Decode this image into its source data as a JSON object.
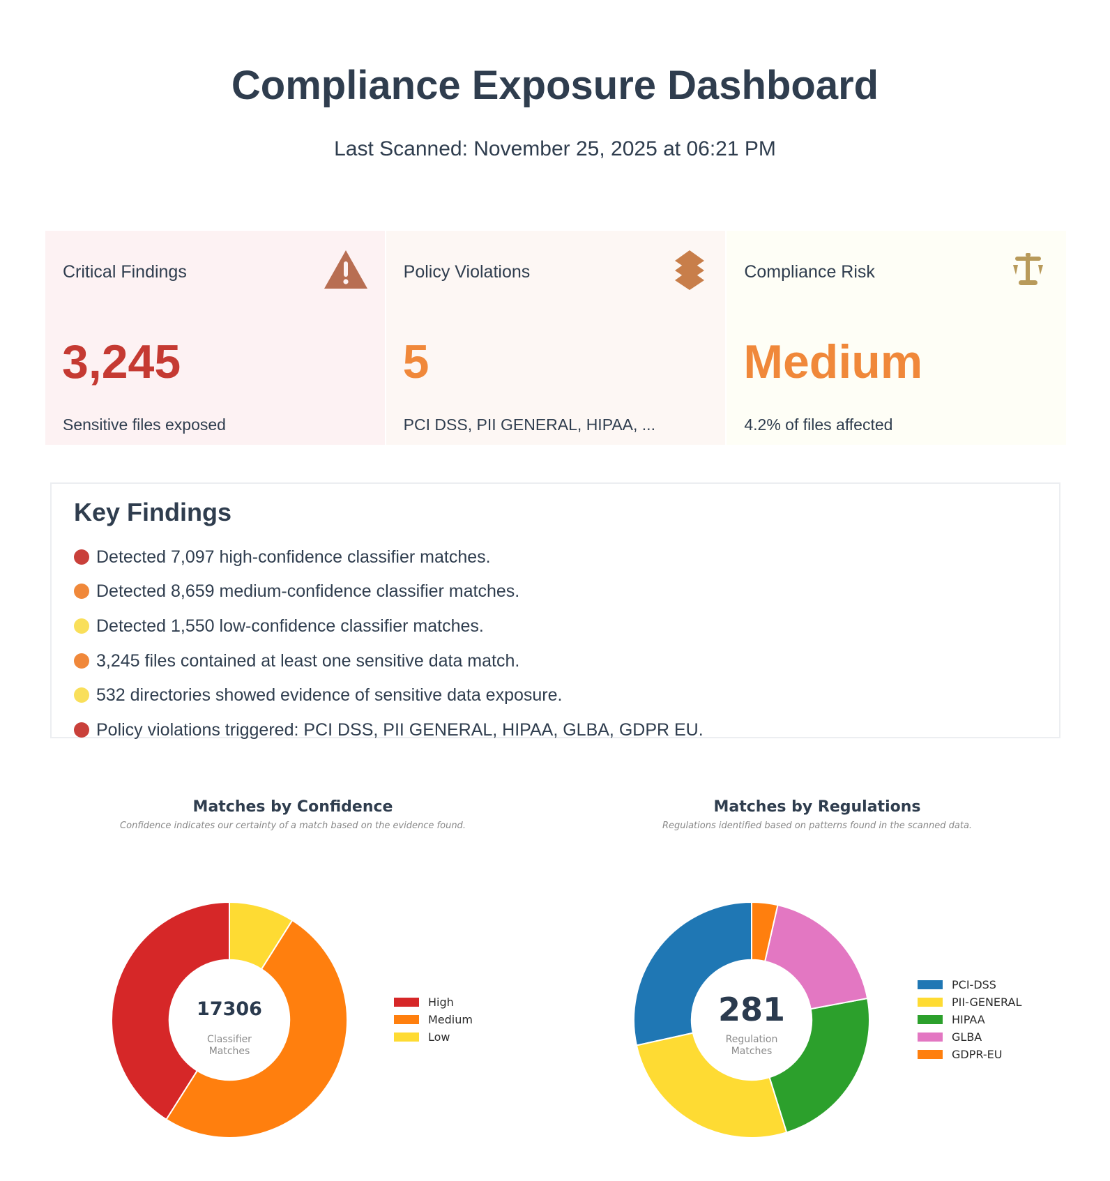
{
  "header": {
    "title": "Compliance Exposure Dashboard",
    "last_scanned": "Last Scanned: November 25, 2025 at 06:21 PM"
  },
  "cards": [
    {
      "title": "Critical Findings",
      "value": "3,245",
      "subtitle": "Sensitive files exposed",
      "icon": "warning-triangle-icon",
      "bg": "#fdf2f3",
      "value_color": "#c53a32",
      "icon_color": "#b86e52"
    },
    {
      "title": "Policy Violations",
      "value": "5",
      "subtitle": "PCI DSS, PII GENERAL, HIPAA, ...",
      "icon": "layers-icon",
      "bg": "#fdf7f4",
      "value_color": "#f0883a",
      "icon_color": "#c87e4a"
    },
    {
      "title": "Compliance Risk",
      "value": "Medium",
      "subtitle": "4.2% of files affected",
      "icon": "scale-icon",
      "bg": "#fefef6",
      "value_color": "#f0883a",
      "icon_color": "#b89a5a"
    }
  ],
  "key_findings": {
    "title": "Key Findings",
    "items": [
      {
        "text": "Detected 7,097 high-confidence classifier matches.",
        "color": "#c9403a"
      },
      {
        "text": "Detected 8,659 medium-confidence classifier matches.",
        "color": "#f0883a"
      },
      {
        "text": "Detected 1,550 low-confidence classifier matches.",
        "color": "#f9df5a"
      },
      {
        "text": "3,245 files contained at least one sensitive data match.",
        "color": "#f0883a"
      },
      {
        "text": "532 directories showed evidence of sensitive data exposure.",
        "color": "#f9df5a"
      },
      {
        "text": "Policy violations triggered: PCI DSS, PII GENERAL, HIPAA, GLBA, GDPR EU.",
        "color": "#c9403a"
      }
    ]
  },
  "chart_data": [
    {
      "type": "pie",
      "title": "Matches by Confidence",
      "subtitle": "Confidence indicates our certainty of a match based on the evidence found.",
      "hole": 0.51,
      "direction": "counterclockwise",
      "center_value": "17306",
      "center_label": [
        "Classifier",
        "Matches"
      ],
      "categories": [
        "High",
        "Medium",
        "Low"
      ],
      "values": [
        7097,
        8659,
        1550
      ],
      "colors": [
        "#d62728",
        "#ff7f0e",
        "#fedb33"
      ],
      "legend_position": "right"
    },
    {
      "type": "pie",
      "title": "Matches by Regulations",
      "subtitle": "Regulations identified based on patterns found in the scanned data.",
      "hole": 0.51,
      "direction": "counterclockwise",
      "center_value": "281",
      "center_label": [
        "Regulation",
        "Matches"
      ],
      "categories": [
        "PCI-DSS",
        "PII-GENERAL",
        "HIPAA",
        "GLBA",
        "GDPR-EU"
      ],
      "values": [
        80,
        74,
        65,
        52,
        10
      ],
      "colors": [
        "#1f77b4",
        "#fedb33",
        "#2ca02c",
        "#e377c2",
        "#ff7f0e"
      ],
      "legend_position": "right"
    }
  ]
}
